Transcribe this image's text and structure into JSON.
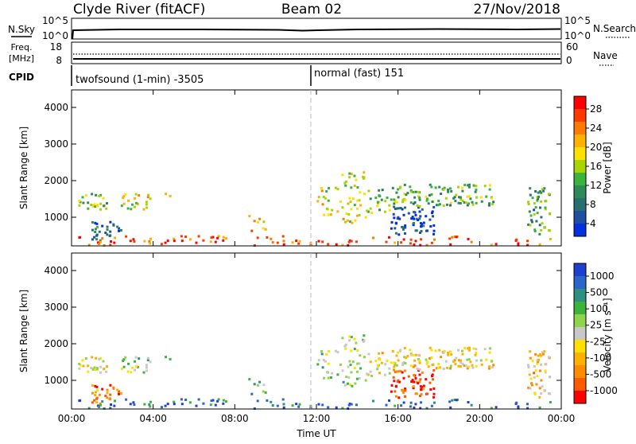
{
  "header": {
    "station": "Clyde River (fitACF)",
    "beam": "Beam 02",
    "date": "27/Nov/2018"
  },
  "panel_nsky": {
    "left_label": "N.Sky",
    "left_ticks": [
      "10^5",
      "10^0"
    ],
    "right_label": "N.Search",
    "right_ticks": [
      "10^5",
      "10^0"
    ]
  },
  "panel_freq": {
    "left_label_1": "Freq.",
    "left_label_2": "[MHz]",
    "left_ticks": [
      "18",
      "8"
    ],
    "right_label": "Nave",
    "right_ticks": [
      "60",
      "0"
    ],
    "cpid_label": "CPID",
    "modes": [
      {
        "text": "twofsound (1-min) -3505"
      },
      {
        "text": "normal (fast) 151"
      }
    ]
  },
  "chart_data": [
    {
      "type": "heatmap",
      "name": "power",
      "ylabel": "Slant Range [km]",
      "yticks": [
        "4000",
        "3000",
        "2000",
        "1000"
      ],
      "xticks": [
        "00:00",
        "04:00",
        "08:00",
        "12:00",
        "16:00",
        "20:00",
        "00:00"
      ],
      "colorbar": {
        "label": "Power [dB]",
        "ticks": [
          "28",
          "24",
          "20",
          "16",
          "12",
          "8",
          "4"
        ],
        "colors": [
          "#ff0000",
          "#ff3a00",
          "#ff7a00",
          "#ffb000",
          "#ffe000",
          "#a8d400",
          "#3cb43c",
          "#2e8b57",
          "#2a6f6f",
          "#1f4fa0",
          "#0030e0"
        ]
      }
    },
    {
      "type": "heatmap",
      "name": "velocity",
      "ylabel": "Slant Range [km]",
      "yticks": [
        "4000",
        "3000",
        "2000",
        "1000"
      ],
      "xticks": [
        "00:00",
        "04:00",
        "08:00",
        "12:00",
        "16:00",
        "20:00",
        "00:00"
      ],
      "colorbar": {
        "label": "Velocity [m s⁻¹]",
        "ticks": [
          "1000",
          "500",
          "100",
          "25",
          "-25",
          "-100",
          "-500",
          "-1000"
        ],
        "colors": [
          "#1f3fd0",
          "#2a66c8",
          "#2f8f80",
          "#3cb43c",
          "#8fd44a",
          "#c8c8c8",
          "#ffe000",
          "#ffb000",
          "#ff8c00",
          "#ff5a00",
          "#ff0000"
        ]
      }
    }
  ],
  "xlabel": "Time UT"
}
